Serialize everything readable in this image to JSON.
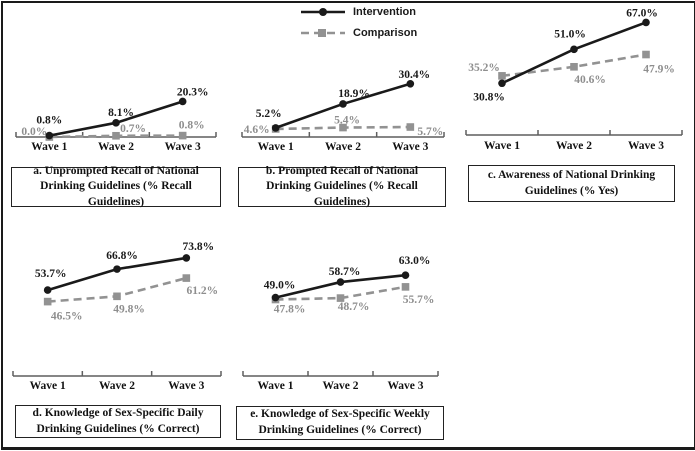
{
  "figure": {
    "legend": {
      "items": [
        {
          "label": "Intervention",
          "series": "intervention"
        },
        {
          "label": "Comparison",
          "series": "comparison"
        }
      ]
    },
    "colors": {
      "intervention": "#1a1a1a",
      "comparison": "#929292",
      "comparison_label": "#8e8e8e",
      "axis": "#5f5f5f"
    }
  },
  "chart_data": [
    {
      "type": "line",
      "panel": "a",
      "title": "a. Unprompted Recall of National Drinking Guidelines (% Recall Guidelines)",
      "categories": [
        "Wave 1",
        "Wave 2",
        "Wave 3"
      ],
      "series": [
        {
          "name": "Intervention",
          "values": [
            0.8,
            8.1,
            20.3
          ],
          "labels": [
            "0.8%",
            "8.1%",
            "20.3%"
          ]
        },
        {
          "name": "Comparison",
          "values": [
            0.0,
            0.7,
            0.8
          ],
          "labels": [
            "0.0%",
            "0.7%",
            "0.8%"
          ]
        }
      ],
      "ylim": [
        0,
        45
      ],
      "grid": false,
      "legend_position": "shared-top-center"
    },
    {
      "type": "line",
      "panel": "b",
      "title": "b. Prompted Recall of National Drinking Guidelines (% Recall Guidelines)",
      "categories": [
        "Wave 1",
        "Wave 2",
        "Wave 3"
      ],
      "series": [
        {
          "name": "Intervention",
          "values": [
            5.2,
            18.9,
            30.4
          ],
          "labels": [
            "5.2%",
            "18.9%",
            "30.4%"
          ]
        },
        {
          "name": "Comparison",
          "values": [
            4.6,
            5.4,
            5.7
          ],
          "labels": [
            "4.6%",
            "5.4%",
            "5.7%"
          ]
        }
      ],
      "ylim": [
        0,
        45
      ],
      "grid": false,
      "legend_position": "shared-top-center"
    },
    {
      "type": "line",
      "panel": "c",
      "title": "c. Awareness of National Drinking Guidelines (% Yes)",
      "categories": [
        "Wave 1",
        "Wave 2",
        "Wave 3"
      ],
      "series": [
        {
          "name": "Intervention",
          "values": [
            30.8,
            51.0,
            67.0
          ],
          "labels": [
            "30.8%",
            "51.0%",
            "67.0%"
          ]
        },
        {
          "name": "Comparison",
          "values": [
            35.2,
            40.6,
            47.9
          ],
          "labels": [
            "35.2%",
            "40.6%",
            "47.9%"
          ]
        }
      ],
      "ylim": [
        0,
        80
      ],
      "grid": false,
      "legend_position": "shared-top-center"
    },
    {
      "type": "line",
      "panel": "d",
      "title": "d. Knowledge of Sex-Specific Daily Drinking Guidelines (% Correct)",
      "categories": [
        "Wave 1",
        "Wave 2",
        "Wave 3"
      ],
      "series": [
        {
          "name": "Intervention",
          "values": [
            53.7,
            66.8,
            73.8
          ],
          "labels": [
            "53.7%",
            "66.8%",
            "73.8%"
          ]
        },
        {
          "name": "Comparison",
          "values": [
            46.5,
            49.8,
            61.2
          ],
          "labels": [
            "46.5%",
            "49.8%",
            "61.2%"
          ]
        }
      ],
      "ylim": [
        0,
        90
      ],
      "grid": false,
      "legend_position": "shared-top-center"
    },
    {
      "type": "line",
      "panel": "e",
      "title": "e. Knowledge of Sex-Specific Weekly Drinking Guidelines (% Correct)",
      "categories": [
        "Wave 1",
        "Wave 2",
        "Wave 3"
      ],
      "series": [
        {
          "name": "Intervention",
          "values": [
            49.0,
            58.7,
            63.0
          ],
          "labels": [
            "49.0%",
            "58.7%",
            "63.0%"
          ]
        },
        {
          "name": "Comparison",
          "values": [
            47.8,
            48.7,
            55.7
          ],
          "labels": [
            "47.8%",
            "48.7%",
            "55.7%"
          ]
        }
      ],
      "ylim": [
        0,
        90
      ],
      "grid": false,
      "legend_position": "shared-top-center"
    }
  ]
}
